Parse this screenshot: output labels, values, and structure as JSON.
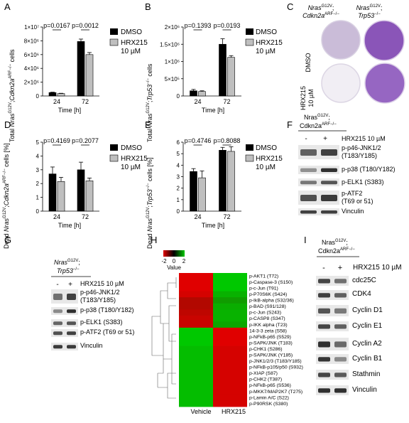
{
  "panels": {
    "A": {
      "label": "A",
      "ylabel_parts": [
        "Total ",
        "Nras",
        "G12V",
        ";",
        "Cdkn2a",
        "ARF−/−",
        " cells"
      ],
      "xlabel": "Time [h]",
      "yticks": [
        "0",
        "2×10⁶",
        "4×10⁶",
        "6×10⁶",
        "8×10⁶",
        "1×10⁷"
      ],
      "pvalues": [
        "p=0.0167",
        "p=0.0012"
      ]
    },
    "B": {
      "label": "B",
      "ylabel_parts": [
        "Total ",
        "Nras",
        "G12V",
        ";",
        "Trp53",
        "−/−",
        " cells"
      ],
      "xlabel": "Time [h]",
      "yticks": [
        "0",
        "5×10⁵",
        "1×10⁶",
        "1.5×10⁶",
        "2×10⁶"
      ],
      "pvalues": [
        "p=0.1393",
        "p=0.0193"
      ]
    },
    "C": {
      "label": "C",
      "col1": [
        "Nras",
        "G12V",
        ";",
        "Cdkn2a",
        "ARF−/−"
      ],
      "col2": [
        "Nras",
        "G12V",
        ";",
        "Trp53",
        "−/−"
      ],
      "rows": [
        "DMSO",
        "HRX215",
        "10 µM"
      ]
    },
    "D": {
      "label": "D",
      "ylabel_parts": [
        "Dead ",
        "Nras",
        "G12V",
        ";",
        "Cdkn2a",
        "ARF−/−",
        " cells [%]"
      ],
      "xlabel": "Time [h]",
      "yticks": [
        "0",
        "1",
        "2",
        "3",
        "4",
        "5"
      ],
      "pvalues": [
        "p=0.4169",
        "p=0.2077"
      ]
    },
    "E": {
      "label": "E",
      "ylabel_parts": [
        "Dead ",
        "Nras",
        "G12V",
        ";",
        "Trp53",
        "−/−",
        " cells [%]"
      ],
      "xlabel": "Time [h]",
      "yticks": [
        "0",
        "1",
        "2",
        "3",
        "4",
        "5",
        "6"
      ],
      "pvalues": [
        "p=0.4746",
        "p=0.8088"
      ]
    },
    "F": {
      "label": "F",
      "genotype": [
        "Nras",
        "G12V",
        ";",
        "Cdkn2a",
        "ARF−/−"
      ],
      "lanes": [
        "-",
        "+"
      ],
      "treatment": "HRX215 10 µM",
      "bands": [
        "p-p46-JNK1/2",
        "(T183/Y185)",
        "p-p38 (T180/Y182)",
        "p-ELK1 (S383)",
        "p-ATF2",
        "(T69 or 51)",
        "Vinculin"
      ]
    },
    "G": {
      "label": "G",
      "genotype": [
        "Nras",
        "G12V",
        ";",
        "Trp53",
        "−/−"
      ],
      "lanes": [
        "-",
        "+"
      ],
      "treatment": "HRX215 10 µM",
      "bands": [
        "p-p46-JNK1/2",
        "(T183/Y185)",
        "p-p38 (T180/Y182)",
        "p-ELK1 (S383)",
        "p-ATF2 (T69 or 51)",
        "Vinculin"
      ]
    },
    "H": {
      "label": "H",
      "scale_ticks": [
        "-2",
        "0",
        "2"
      ],
      "scale_label": "Value",
      "columns": [
        "Vehicle",
        "HRX215"
      ],
      "rows": [
        "p-AKT1 (T72)",
        "p-Caspase-3 (S150)",
        "p-c-Jun (T91)",
        "p-P70S6K (S424)",
        "p-IkB-alpha (S32/36)",
        "p-BAD (S91/128)",
        "p-c-Jun (S243)",
        "p-CASP8 (S347)",
        "p-IKK alpha (T23)",
        "14-3-3 zeta (S58)",
        "p-NFkB-p65 (S529)",
        "p-SAPK/JNK (T183)",
        "p-CHK1 (S286)",
        "p-SAPK/JNK (Y185)",
        "p-JNK1/2/3 (T183/Y185)",
        "p-NFkB-p105/p50 (S932)",
        "p-XIAP (S87)",
        "p-CHK2 (T387)",
        "p-NFkB-p65 (S536)",
        "p-MKK7/MAP2K7 (T275)",
        "p-Lamin A/C (S22)",
        "p-P90RSK (S380)"
      ]
    },
    "I": {
      "label": "I",
      "genotype": [
        "Nras",
        "G12V",
        ";",
        "Cdkn2a",
        "ARF−/−"
      ],
      "lanes": [
        "-",
        "+"
      ],
      "treatment": "HRX215 10 µM",
      "bands": [
        "cdc25C",
        "CDK4",
        "Cyclin D1",
        "Cyclin E1",
        "Cyclin A2",
        "Cyclin B1",
        "Stathmin",
        "Vinculin"
      ]
    }
  },
  "legend": {
    "dmso": "DMSO",
    "hrx1": "HRX215",
    "hrx2": "10 µM"
  },
  "colors": {
    "dmso": "#000000",
    "hrx": "#bfbfbf",
    "heat_high": "#00c800",
    "heat_low": "#e00000"
  },
  "chart_data": [
    {
      "type": "bar",
      "panel": "A",
      "categories": [
        "24",
        "72"
      ],
      "xlabel": "Time [h]",
      "ylim": [
        0,
        10000000
      ],
      "series": [
        {
          "name": "DMSO",
          "values": [
            500000,
            7900000
          ],
          "errors": [
            50000,
            350000
          ]
        },
        {
          "name": "HRX215 10 µM",
          "values": [
            350000,
            6000000
          ],
          "errors": [
            40000,
            300000
          ]
        }
      ]
    },
    {
      "type": "bar",
      "panel": "B",
      "categories": [
        "24",
        "72"
      ],
      "xlabel": "Time [h]",
      "ylim": [
        0,
        2000000
      ],
      "series": [
        {
          "name": "DMSO",
          "values": [
            150000,
            1500000
          ],
          "errors": [
            40000,
            160000
          ]
        },
        {
          "name": "HRX215 10 µM",
          "values": [
            130000,
            1120000
          ],
          "errors": [
            20000,
            50000
          ]
        }
      ]
    },
    {
      "type": "bar",
      "panel": "D",
      "categories": [
        "24",
        "72"
      ],
      "xlabel": "Time [h]",
      "ylim": [
        0,
        5
      ],
      "series": [
        {
          "name": "DMSO",
          "values": [
            2.7,
            3.0
          ],
          "errors": [
            0.5,
            0.55
          ]
        },
        {
          "name": "HRX215 10 µM",
          "values": [
            2.15,
            2.2
          ],
          "errors": [
            0.3,
            0.2
          ]
        }
      ]
    },
    {
      "type": "bar",
      "panel": "E",
      "categories": [
        "24",
        "72"
      ],
      "xlabel": "Time [h]",
      "ylim": [
        0,
        6
      ],
      "series": [
        {
          "name": "DMSO",
          "values": [
            3.45,
            5.3
          ],
          "errors": [
            0.25,
            0.25
          ]
        },
        {
          "name": "HRX215 10 µM",
          "values": [
            2.9,
            5.2
          ],
          "errors": [
            0.6,
            0.4
          ]
        }
      ]
    },
    {
      "type": "heatmap",
      "panel": "H",
      "columns": [
        "Vehicle",
        "HRX215"
      ],
      "scale": [
        -2,
        2
      ],
      "values": [
        [
          -2,
          2
        ],
        [
          -2,
          2
        ],
        [
          -2,
          2
        ],
        [
          -1.8,
          1.6
        ],
        [
          -1.2,
          1.2
        ],
        [
          -1.2,
          1.5
        ],
        [
          -1.4,
          1.6
        ],
        [
          -1.6,
          1.6
        ],
        [
          -1.6,
          1.4
        ],
        [
          2,
          -2
        ],
        [
          2,
          -2
        ],
        [
          2,
          -2
        ],
        [
          1.8,
          -1.8
        ],
        [
          1.8,
          -1.8
        ],
        [
          1.8,
          -1.8
        ],
        [
          1.8,
          -1.8
        ],
        [
          1.8,
          -1.8
        ],
        [
          1.8,
          -1.8
        ],
        [
          1.8,
          -1.8
        ],
        [
          1.8,
          -1.8
        ],
        [
          1.8,
          -1.8
        ],
        [
          1.8,
          -1.8
        ]
      ]
    }
  ]
}
